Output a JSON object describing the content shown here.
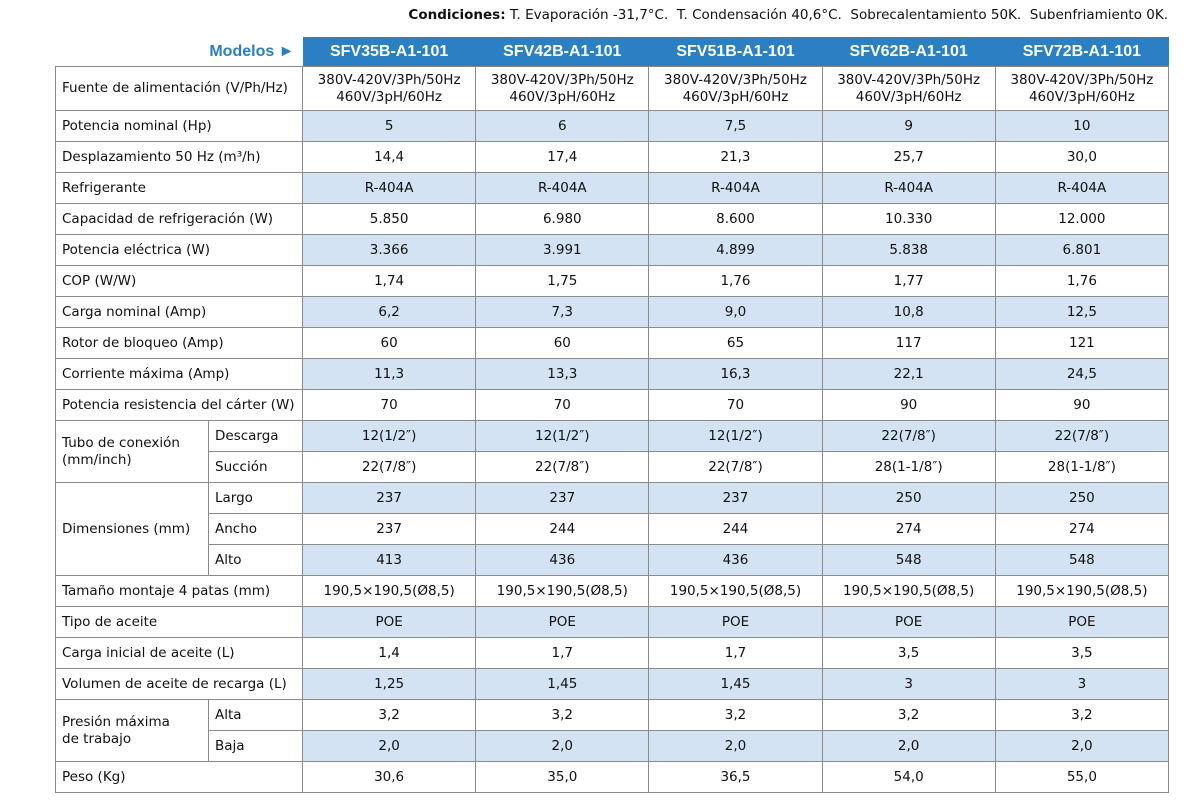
{
  "conditions": {
    "label": "Condiciones:",
    "text": "T. Evaporación -31,7°C.  T. Condensación 40,6°C.  Sobrecalentamiento 50K.  Subenfriamiento 0K."
  },
  "table": {
    "models_label": "Modelos ►",
    "models": [
      "SFV35B-A1-101",
      "SFV42B-A1-101",
      "SFV51B-A1-101",
      "SFV62B-A1-101",
      "SFV72B-A1-101"
    ],
    "rows": [
      {
        "label": "Fuente de alimentación (V/Ph/Hz)",
        "values": [
          "380V-420V/3Ph/50Hz\n460V/3pH/60Hz",
          "380V-420V/3Ph/50Hz\n460V/3pH/60Hz",
          "380V-420V/3Ph/50Hz\n460V/3pH/60Hz",
          "380V-420V/3Ph/50Hz\n460V/3pH/60Hz",
          "380V-420V/3Ph/50Hz\n460V/3pH/60Hz"
        ]
      },
      {
        "label": "Potencia nominal (Hp)",
        "values": [
          "5",
          "6",
          "7,5",
          "9",
          "10"
        ]
      },
      {
        "label": "Desplazamiento 50 Hz (m³/h)",
        "values": [
          "14,4",
          "17,4",
          "21,3",
          "25,7",
          "30,0"
        ]
      },
      {
        "label": "Refrigerante",
        "values": [
          "R-404A",
          "R-404A",
          "R-404A",
          "R-404A",
          "R-404A"
        ]
      },
      {
        "label": "Capacidad de refrigeración (W)",
        "values": [
          "5.850",
          "6.980",
          "8.600",
          "10.330",
          "12.000"
        ]
      },
      {
        "label": "Potencia eléctrica (W)",
        "values": [
          "3.366",
          "3.991",
          "4.899",
          "5.838",
          "6.801"
        ]
      },
      {
        "label": "COP (W/W)",
        "values": [
          "1,74",
          "1,75",
          "1,76",
          "1,77",
          "1,76"
        ]
      },
      {
        "label": "Carga nominal (Amp)",
        "values": [
          "6,2",
          "7,3",
          "9,0",
          "10,8",
          "12,5"
        ]
      },
      {
        "label": "Rotor de bloqueo (Amp)",
        "values": [
          "60",
          "60",
          "65",
          "117",
          "121"
        ]
      },
      {
        "label": "Corriente máxima (Amp)",
        "values": [
          "11,3",
          "13,3",
          "16,3",
          "22,1",
          "24,5"
        ]
      },
      {
        "label": "Potencia resistencia del cárter (W)",
        "values": [
          "70",
          "70",
          "70",
          "90",
          "90"
        ]
      },
      {
        "label": "Tubo de conexión\n(mm/inch)",
        "subrows": [
          {
            "label": "Descarga",
            "values": [
              "12(1/2″)",
              "12(1/2″)",
              "12(1/2″)",
              "22(7/8″)",
              "22(7/8″)"
            ]
          },
          {
            "label": "Succión",
            "values": [
              "22(7/8″)",
              "22(7/8″)",
              "22(7/8″)",
              "28(1-1/8″)",
              "28(1-1/8″)"
            ]
          }
        ]
      },
      {
        "label": "Dimensiones (mm)",
        "subrows": [
          {
            "label": "Largo",
            "values": [
              "237",
              "237",
              "237",
              "250",
              "250"
            ]
          },
          {
            "label": "Ancho",
            "values": [
              "237",
              "244",
              "244",
              "274",
              "274"
            ]
          },
          {
            "label": "Alto",
            "values": [
              "413",
              "436",
              "436",
              "548",
              "548"
            ]
          }
        ]
      },
      {
        "label": "Tamaño montaje 4 patas (mm)",
        "values": [
          "190,5×190,5(Ø8,5)",
          "190,5×190,5(Ø8,5)",
          "190,5×190,5(Ø8,5)",
          "190,5×190,5(Ø8,5)",
          "190,5×190,5(Ø8,5)"
        ]
      },
      {
        "label": "Tipo de aceite",
        "values": [
          "POE",
          "POE",
          "POE",
          "POE",
          "POE"
        ]
      },
      {
        "label": "Carga inicial de aceite (L)",
        "values": [
          "1,4",
          "1,7",
          "1,7",
          "3,5",
          "3,5"
        ]
      },
      {
        "label": "Volumen de aceite de recarga (L)",
        "values": [
          "1,25",
          "1,45",
          "1,45",
          "3",
          "3"
        ]
      },
      {
        "label": "Presión máxima\nde trabajo",
        "subrows": [
          {
            "label": "Alta",
            "values": [
              "3,2",
              "3,2",
              "3,2",
              "3,2",
              "3,2"
            ]
          },
          {
            "label": "Baja",
            "values": [
              "2,0",
              "2,0",
              "2,0",
              "2,0",
              "2,0"
            ]
          }
        ]
      },
      {
        "label": "Peso (Kg)",
        "values": [
          "30,6",
          "35,0",
          "36,5",
          "54,0",
          "55,0"
        ]
      }
    ]
  }
}
